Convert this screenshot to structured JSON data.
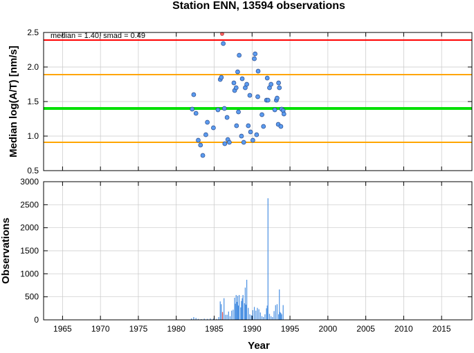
{
  "title": "Station ENN, 13594 observations",
  "chart_data": [
    {
      "type": "scatter",
      "ylabel": "Median log(A/T) [nm/s]",
      "ylim": [
        0.5,
        2.5
      ],
      "xlim": [
        1962.5,
        2019
      ],
      "yticks": [
        "0.5",
        "1.0",
        "1.5",
        "2.0",
        "2.5"
      ],
      "grid": true,
      "annotation": "median = 1.40, smad = 0.49",
      "hlines": [
        {
          "y": 2.39,
          "color": "#ff0000"
        },
        {
          "y": 1.89,
          "color": "#ffa500"
        },
        {
          "y": 1.4,
          "color": "#00e000"
        },
        {
          "y": 0.91,
          "color": "#ffa500"
        }
      ],
      "points_color": "#5b9bef",
      "outlier_color": "#ff6060",
      "points": [
        [
          1982.1,
          1.39
        ],
        [
          1982.3,
          1.6
        ],
        [
          1982.6,
          1.33
        ],
        [
          1982.9,
          0.94
        ],
        [
          1983.2,
          0.87
        ],
        [
          1983.5,
          0.72
        ],
        [
          1983.9,
          1.02
        ],
        [
          1984.1,
          1.2
        ],
        [
          1984.9,
          1.12
        ],
        [
          1985.5,
          1.38
        ],
        [
          1985.8,
          1.82
        ],
        [
          1985.95,
          1.85
        ],
        [
          1986.2,
          2.34
        ],
        [
          1986.35,
          1.4
        ],
        [
          1986.4,
          0.89
        ],
        [
          1986.7,
          1.27
        ],
        [
          1986.8,
          0.95
        ],
        [
          1987.0,
          0.91
        ],
        [
          1987.6,
          1.77
        ],
        [
          1987.7,
          1.66
        ],
        [
          1987.9,
          1.7
        ],
        [
          1987.95,
          1.15
        ],
        [
          1988.1,
          1.93
        ],
        [
          1988.2,
          1.35
        ],
        [
          1988.3,
          2.17
        ],
        [
          1988.6,
          1.0
        ],
        [
          1988.7,
          1.83
        ],
        [
          1988.9,
          0.91
        ],
        [
          1989.1,
          1.7
        ],
        [
          1989.3,
          1.75
        ],
        [
          1989.5,
          1.15
        ],
        [
          1989.7,
          1.59
        ],
        [
          1989.8,
          1.06
        ],
        [
          1990.1,
          0.94
        ],
        [
          1990.3,
          2.12
        ],
        [
          1990.4,
          2.19
        ],
        [
          1990.6,
          1.02
        ],
        [
          1990.75,
          1.57
        ],
        [
          1990.8,
          1.94
        ],
        [
          1991.3,
          1.31
        ],
        [
          1991.5,
          1.14
        ],
        [
          1991.9,
          1.52
        ],
        [
          1992.0,
          1.84
        ],
        [
          1992.1,
          1.52
        ],
        [
          1992.3,
          1.7
        ],
        [
          1992.5,
          1.75
        ],
        [
          1993.0,
          1.38
        ],
        [
          1993.2,
          1.52
        ],
        [
          1993.3,
          1.55
        ],
        [
          1993.45,
          1.17
        ],
        [
          1993.5,
          1.77
        ],
        [
          1993.6,
          1.7
        ],
        [
          1993.8,
          1.14
        ],
        [
          1993.9,
          1.39
        ],
        [
          1994.1,
          1.37
        ],
        [
          1994.2,
          1.32
        ]
      ],
      "outliers": [
        [
          1986.05,
          2.48
        ]
      ]
    },
    {
      "type": "bar",
      "xlabel": "Year",
      "ylabel": "Observations",
      "ylim": [
        0,
        3000
      ],
      "xlim": [
        1962.5,
        2019
      ],
      "yticks": [
        "0",
        "500",
        "1000",
        "1500",
        "2000",
        "2500",
        "3000"
      ],
      "xticks": [
        "1965",
        "1970",
        "1975",
        "1980",
        "1985",
        "1990",
        "1995",
        "2000",
        "2005",
        "2010",
        "2015"
      ],
      "grid": true,
      "bar_color": "#4a90e2",
      "highlight_color": "#e05050",
      "bars": [
        [
          1982.0,
          30
        ],
        [
          1982.3,
          60
        ],
        [
          1982.6,
          40
        ],
        [
          1982.9,
          20
        ],
        [
          1983.3,
          15
        ],
        [
          1983.7,
          25
        ],
        [
          1984.1,
          20
        ],
        [
          1984.5,
          30
        ],
        [
          1984.9,
          25
        ],
        [
          1985.3,
          20
        ],
        [
          1985.6,
          60
        ],
        [
          1985.8,
          400
        ],
        [
          1985.95,
          340
        ],
        [
          1986.1,
          130
        ],
        [
          1986.3,
          470
        ],
        [
          1986.5,
          110
        ],
        [
          1986.7,
          110
        ],
        [
          1986.9,
          180
        ],
        [
          1987.1,
          80
        ],
        [
          1987.3,
          200
        ],
        [
          1987.5,
          220
        ],
        [
          1987.7,
          480
        ],
        [
          1987.8,
          350
        ],
        [
          1987.9,
          540
        ],
        [
          1988.0,
          390
        ],
        [
          1988.1,
          520
        ],
        [
          1988.2,
          310
        ],
        [
          1988.3,
          540
        ],
        [
          1988.5,
          270
        ],
        [
          1988.6,
          410
        ],
        [
          1988.7,
          470
        ],
        [
          1988.8,
          540
        ],
        [
          1989.0,
          360
        ],
        [
          1989.1,
          700
        ],
        [
          1989.2,
          330
        ],
        [
          1989.3,
          870
        ],
        [
          1989.5,
          260
        ],
        [
          1989.7,
          120
        ],
        [
          1989.9,
          100
        ],
        [
          1990.1,
          210
        ],
        [
          1990.3,
          280
        ],
        [
          1990.5,
          200
        ],
        [
          1990.7,
          260
        ],
        [
          1990.9,
          230
        ],
        [
          1991.1,
          160
        ],
        [
          1991.3,
          80
        ],
        [
          1991.5,
          60
        ],
        [
          1991.7,
          120
        ],
        [
          1991.9,
          250
        ],
        [
          1992.0,
          310
        ],
        [
          1992.1,
          2640
        ],
        [
          1992.3,
          130
        ],
        [
          1992.5,
          80
        ],
        [
          1992.7,
          60
        ],
        [
          1992.9,
          190
        ],
        [
          1993.1,
          320
        ],
        [
          1993.3,
          340
        ],
        [
          1993.5,
          120
        ],
        [
          1993.6,
          660
        ],
        [
          1993.7,
          170
        ],
        [
          1993.8,
          150
        ],
        [
          1993.9,
          120
        ],
        [
          1994.1,
          320
        ]
      ],
      "highlight_bars": [
        [
          1986.1,
          170
        ]
      ]
    }
  ]
}
